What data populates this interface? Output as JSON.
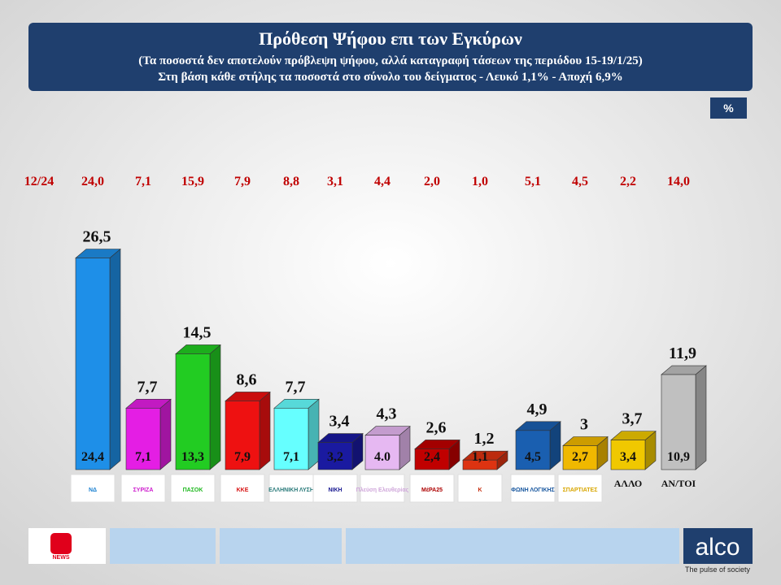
{
  "chart_data": {
    "type": "bar3d",
    "title": "Πρόθεση Ψήφου επι των Εγκύρων",
    "subtitle": "(Τα ποσοστά δεν αποτελούν πρόβλεψη ψήφου, αλλά καταγραφή τάσεων της περιόδου  15-19/1/25)",
    "note": "Στη βάση κάθε στήλης τα ποσοστά στο σύνολο του δείγματος - Λευκό 1,1% - Αποχή 6,9%",
    "unit": "%",
    "categories": [
      "ΝΔ",
      "ΣΥΡΙΖΑ",
      "ΠΑΣΟΚ",
      "ΚΚΕ",
      "ΕΛΛΗΝΙΚΗ ΛΥΣΗ",
      "ΝΙΚΗ",
      "Πλεύση Ελευθερίας",
      "ΜέΡΑ25",
      "Κ",
      "ΦΩΝΗ ΛΟΓΙΚΗΣ",
      "ΣΠΑΡΤΙΑΤΕΣ",
      "ΑΛΛΟ",
      "ΑΝ/ΤΟΙ"
    ],
    "colors": [
      "#1e8fe8",
      "#e41ee4",
      "#22cc22",
      "#ee1111",
      "#66ffff",
      "#1a1aa0",
      "#e6b8f2",
      "#c00000",
      "#dd3311",
      "#1a5fb0",
      "#f0b800",
      "#f0c800",
      "#c0c0c0"
    ],
    "values": [
      26.5,
      7.7,
      14.5,
      8.6,
      7.7,
      3.4,
      4.3,
      2.6,
      1.2,
      4.9,
      3,
      3.7,
      11.9
    ],
    "value_labels": [
      "26,5",
      "7,7",
      "14,5",
      "8,6",
      "7,7",
      "3,4",
      "4,3",
      "2,6",
      "1,2",
      "4,9",
      "3",
      "3,7",
      "11,9"
    ],
    "sample_values": [
      24.4,
      7.1,
      13.3,
      7.9,
      7.1,
      3.2,
      4.0,
      2.4,
      1.1,
      4.5,
      2.7,
      3.4,
      10.9
    ],
    "sample_value_labels": [
      "24,4",
      "7,1",
      "13,3",
      "7,9",
      "7,1",
      "3,2",
      "4.0",
      "2,4",
      "1,1",
      "4,5",
      "2,7",
      "3,4",
      "10,9"
    ],
    "previous": {
      "label": "12/24",
      "values": [
        24.0,
        7.1,
        15.9,
        7.9,
        8.8,
        3.1,
        4.4,
        2.0,
        1.0,
        5.1,
        4.5,
        2.2,
        14.0
      ],
      "value_labels": [
        "24,0",
        "7,1",
        "15,9",
        "7,9",
        "8,8",
        "3,1",
        "4,4",
        "2,0",
        "1,0",
        "5,1",
        "4,5",
        "2,2",
        "14,0"
      ]
    },
    "footer": {
      "brand": "alco",
      "tagline": "The pulse of society",
      "channel": "NEWS"
    }
  }
}
